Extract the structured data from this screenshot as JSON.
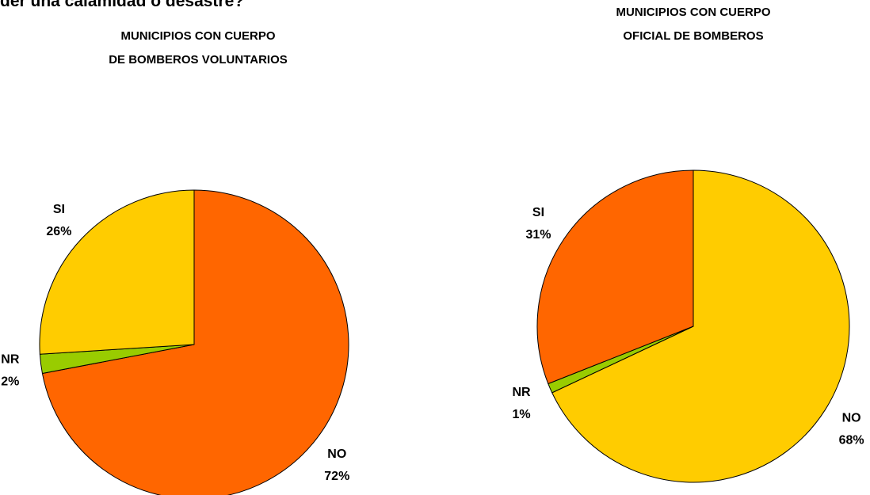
{
  "header": {
    "text": "der una calamidad o desastre?"
  },
  "chart_data": [
    {
      "type": "pie",
      "title": [
        "MUNICIPIOS CON CUERPO",
        "DE BOMBEROS VOLUNTARIOS"
      ],
      "categories": [
        "NO",
        "NR",
        "SI"
      ],
      "values": [
        72,
        2,
        26
      ],
      "value_labels": [
        "72%",
        "2%",
        "26%"
      ],
      "colors": [
        "#ff6600",
        "#99cc00",
        "#ffcc00"
      ]
    },
    {
      "type": "pie",
      "title": [
        "MUNICIPIOS CON CUERPO",
        "OFICIAL DE BOMBEROS"
      ],
      "categories": [
        "NO",
        "NR",
        "SI"
      ],
      "values": [
        68,
        1,
        31
      ],
      "value_labels": [
        "68%",
        "1%",
        "31%"
      ],
      "colors": [
        "#ffcc00",
        "#99cc00",
        "#ff6600"
      ]
    }
  ]
}
